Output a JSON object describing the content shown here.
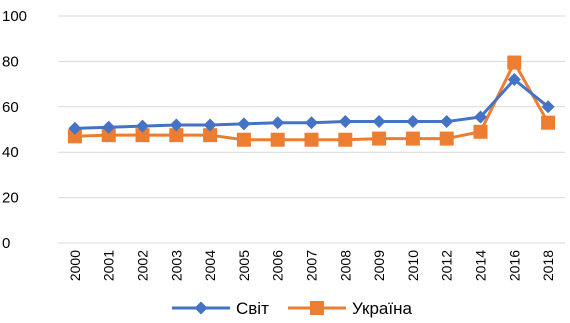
{
  "chart_data": {
    "type": "line",
    "categories": [
      "2000",
      "2001",
      "2002",
      "2003",
      "2004",
      "2005",
      "2006",
      "2007",
      "2008",
      "2009",
      "2010",
      "2012",
      "2014",
      "2016",
      "2018"
    ],
    "ylim": [
      0,
      100
    ],
    "yticks": [
      "0",
      "20",
      "40",
      "60",
      "80",
      "100"
    ],
    "grid": "horizontal",
    "legend_position": "bottom",
    "series": [
      {
        "name": "Світ",
        "color": "#4472C4",
        "marker": "diamond",
        "values": [
          50.5,
          51,
          51.5,
          52,
          52,
          52.5,
          53,
          53,
          53.5,
          53.5,
          53.5,
          53.5,
          55.5,
          72,
          60
        ]
      },
      {
        "name": "Україна",
        "color": "#ED7D31",
        "marker": "square",
        "values": [
          47,
          47.5,
          47.5,
          47.5,
          47.5,
          45.5,
          45.5,
          45.5,
          45.5,
          46,
          46,
          46,
          49,
          79.5,
          53
        ]
      }
    ]
  }
}
